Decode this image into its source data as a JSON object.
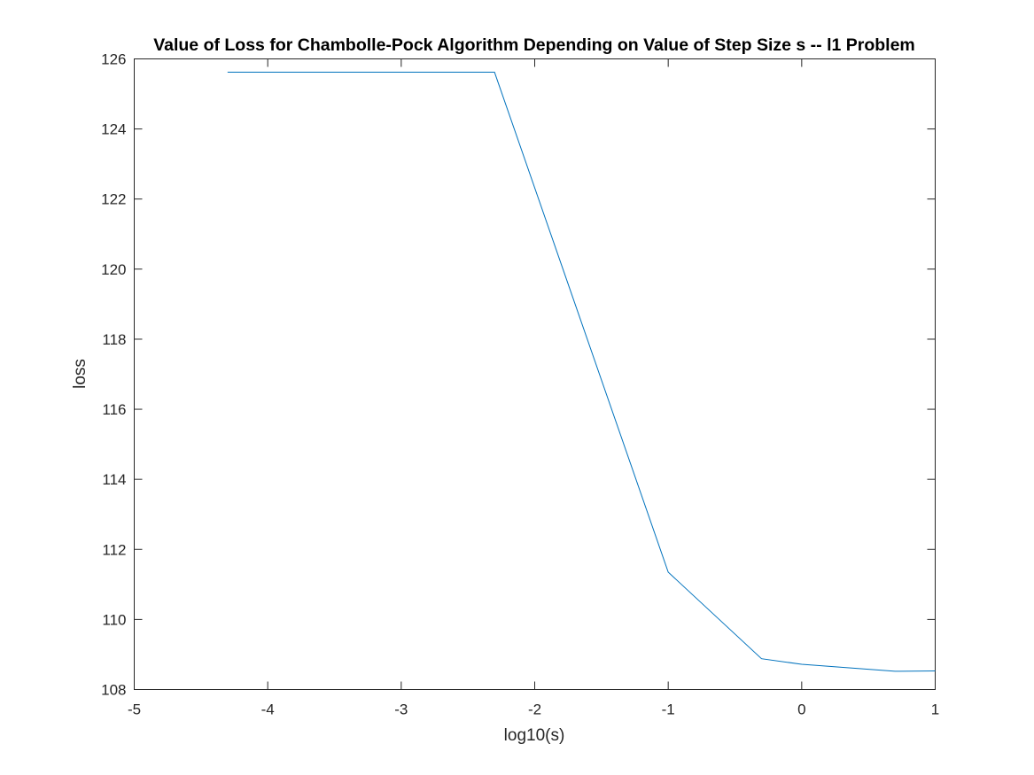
{
  "chart_data": {
    "type": "line",
    "title": "Value of Loss for Chambolle-Pock Algorithm Depending on Value of Step Size s -- l1 Problem",
    "xlabel": "log10(s)",
    "ylabel": "loss",
    "xlim": [
      -5,
      1
    ],
    "ylim": [
      108,
      126
    ],
    "xticks": [
      -5,
      -4,
      -3,
      -2,
      -1,
      0,
      1
    ],
    "yticks": [
      108,
      110,
      112,
      114,
      116,
      118,
      120,
      122,
      124,
      126
    ],
    "xtick_labels": [
      "-5",
      "-4",
      "-3",
      "-2",
      "-1",
      "0",
      "1"
    ],
    "ytick_labels": [
      "108",
      "110",
      "112",
      "114",
      "116",
      "118",
      "120",
      "122",
      "124",
      "126"
    ],
    "grid": false,
    "series": [
      {
        "color": "#0072BD",
        "x": [
          -4.301,
          -3.301,
          -2.301,
          -1.0,
          -0.301,
          0.0,
          0.699,
          1.0
        ],
        "y": [
          125.62,
          125.62,
          125.62,
          111.35,
          108.88,
          108.72,
          108.52,
          108.53
        ]
      }
    ]
  }
}
